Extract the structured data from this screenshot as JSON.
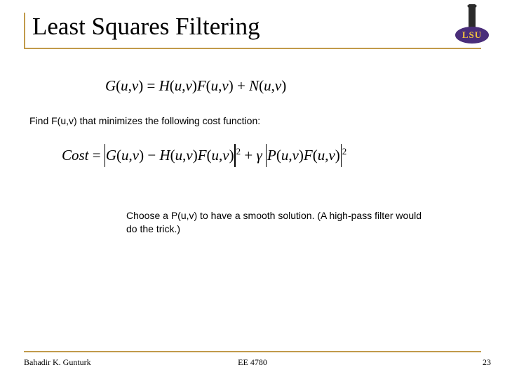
{
  "title": "Least Squares Filtering",
  "logo_text": "LSU",
  "equation1_parts": {
    "G": "G",
    "open": "(",
    "u": "u",
    "comma": ",",
    "v": "v",
    "close": ")",
    "eq": " = ",
    "H": "H",
    "F": "F",
    "plus": " + ",
    "N": "N"
  },
  "body1": "Find F(u,v) that minimizes the following cost function:",
  "equation2_parts": {
    "Cost": "Cost",
    "eq": " = ",
    "G": "G",
    "H": "H",
    "F": "F",
    "minus": " − ",
    "plus": " + ",
    "gamma": "γ",
    "P": "P",
    "pow2": "2"
  },
  "body2": "Choose a P(u,v) to have a smooth solution. (A high-pass filter would do the trick.)",
  "footer": {
    "author": "Bahadir K. Gunturk",
    "course": "EE 4780",
    "page": "23"
  },
  "colors": {
    "accent": "#C19A4B",
    "logo_purple": "#4a2e7a",
    "logo_gold": "#f2c23e"
  }
}
